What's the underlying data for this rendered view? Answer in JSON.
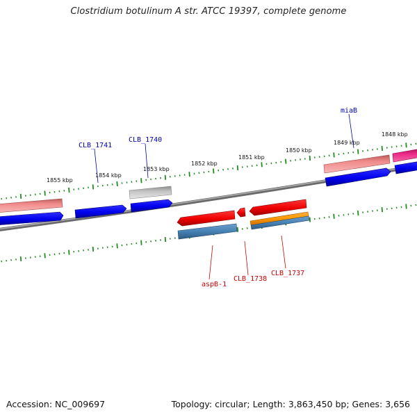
{
  "title": "Clostridium botulinum A str. ATCC 19397, complete genome",
  "footer": {
    "accession": "Accession: NC_009697",
    "summary": "Topology: circular; Length: 3,863,450 bp; Genes: 3,656"
  },
  "scale_labels": [
    "1855 kbp",
    "1854 kbp",
    "1853 kbp",
    "1852 kbp",
    "1851 kbp",
    "1850 kbp",
    "1849 kbp",
    "1848 kbp"
  ],
  "forward_genes": [
    "CLB_1741",
    "CLB_1740",
    "miaB"
  ],
  "reverse_genes": [
    "aspB-1",
    "CLB_1738",
    "CLB_1737"
  ],
  "colors": {
    "backbone": "#808080",
    "cds": "#0000ee",
    "pink_feature": "#f08080",
    "gray_feature": "#bbbbbb",
    "magenta_feature": "#e8187a",
    "red_feature": "#ee0000",
    "steelblue_feature": "#4682b4",
    "orange_feature": "#ff9900",
    "ticks": "#228b22",
    "forward_label": "#0000aa",
    "reverse_label": "#cc0000"
  }
}
